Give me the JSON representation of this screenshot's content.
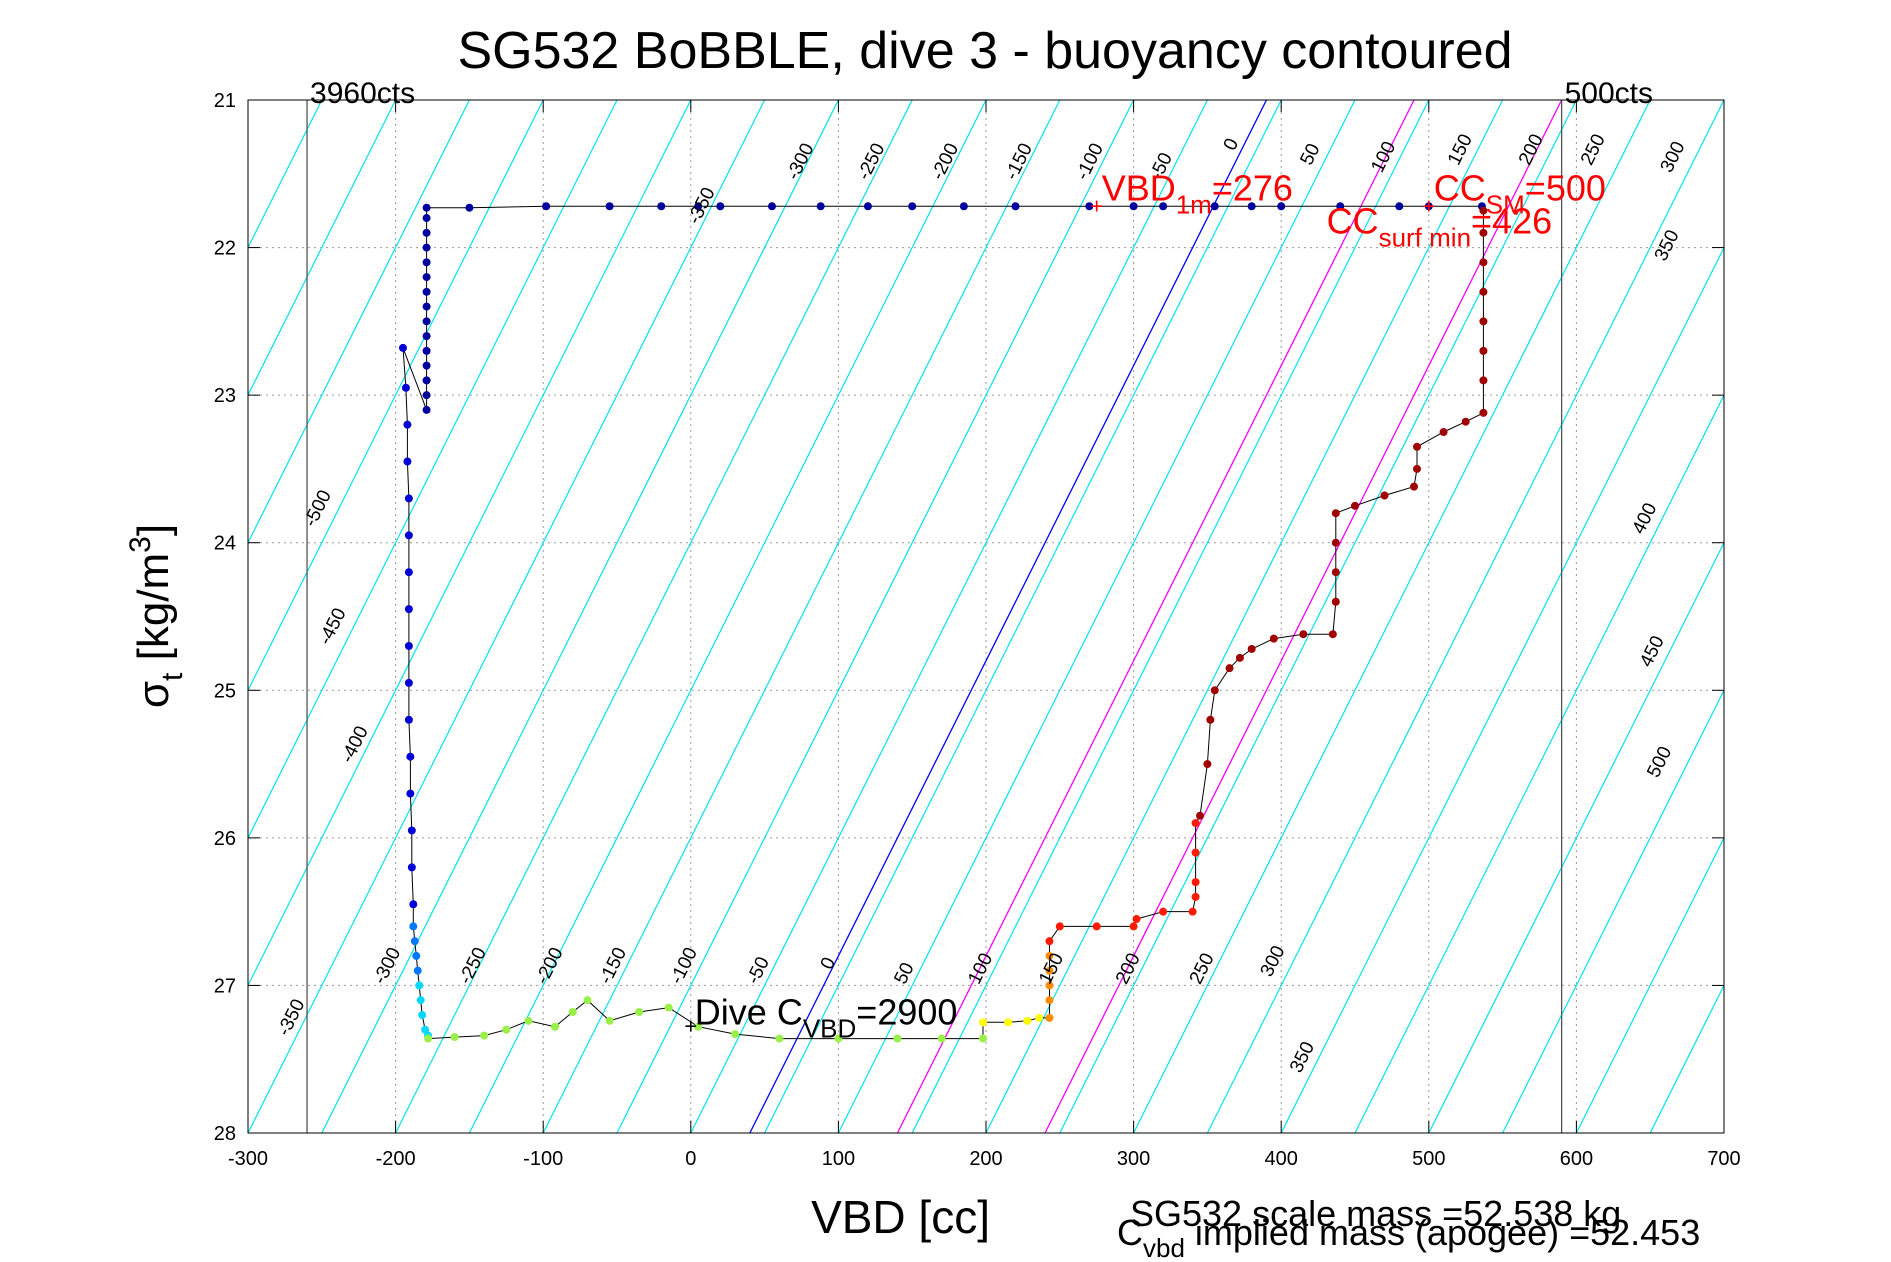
{
  "chart_data": {
    "type": "scatter",
    "title": "SG532 BoBBLE, dive 3 - buoyancy contoured",
    "xlabel": "VBD [cc]",
    "ylabel": {
      "main": "σ",
      "sub": "t",
      "unit": " [kg/m",
      "sup": "3",
      "close": "]"
    },
    "xlim": [
      -300,
      700
    ],
    "ylim": [
      21,
      28
    ],
    "y_reversed": true,
    "grid": true,
    "x_ticks": [
      "-300",
      "-200",
      "-100",
      "0",
      "100",
      "200",
      "300",
      "400",
      "500",
      "600",
      "700"
    ],
    "y_ticks": [
      "21",
      "22",
      "23",
      "24",
      "25",
      "26",
      "27",
      "28"
    ],
    "vertical_limits": [
      {
        "x": -260,
        "label": "3960cts"
      },
      {
        "x": 590,
        "label": "500cts"
      }
    ],
    "reference_lines": [
      {
        "color": "#0000ff",
        "points": [
          [
            40,
            28
          ],
          [
            390,
            21
          ]
        ]
      },
      {
        "color": "#ff00ff",
        "points": [
          [
            140,
            28
          ],
          [
            490,
            21
          ]
        ]
      },
      {
        "color": "#ff00ff",
        "points": [
          [
            240,
            28
          ],
          [
            590,
            21
          ]
        ]
      }
    ],
    "contours": {
      "color": "#00e5ee",
      "slope_cc_per_sigma": -50,
      "anchor_sigma": 28,
      "anchors_cc": [
        -650,
        -600,
        -550,
        -500,
        -450,
        -400,
        -350,
        -300,
        -250,
        -200,
        -150,
        -100,
        -50,
        0,
        50,
        100,
        150,
        200,
        250,
        300,
        350,
        400,
        450,
        500,
        550,
        600,
        650,
        700,
        750,
        800,
        850,
        900,
        950,
        1000,
        1050
      ]
    },
    "contour_labels": [
      {
        "text": "-350",
        "x": -273,
        "y": 27.35
      },
      {
        "text": "-300",
        "x": -208,
        "y": 27.0
      },
      {
        "text": "-250",
        "x": -150,
        "y": 27.0
      },
      {
        "text": "-200",
        "x": -98,
        "y": 27.0
      },
      {
        "text": "-150",
        "x": -55,
        "y": 27.0
      },
      {
        "text": "-100",
        "x": -7,
        "y": 27.0
      },
      {
        "text": "-50",
        "x": 45,
        "y": 27.0
      },
      {
        "text": "0",
        "x": 95,
        "y": 26.9
      },
      {
        "text": "50",
        "x": 145,
        "y": 27.0
      },
      {
        "text": "100",
        "x": 195,
        "y": 27.0
      },
      {
        "text": "150",
        "x": 243,
        "y": 27.0
      },
      {
        "text": "200",
        "x": 295,
        "y": 27.0
      },
      {
        "text": "250",
        "x": 345,
        "y": 27.0
      },
      {
        "text": "300",
        "x": 393,
        "y": 26.95
      },
      {
        "text": "350",
        "x": 413,
        "y": 27.6
      },
      {
        "text": "-500",
        "x": -255,
        "y": 23.9
      },
      {
        "text": "-450",
        "x": -245,
        "y": 24.7
      },
      {
        "text": "-400",
        "x": -230,
        "y": 25.5
      },
      {
        "text": "-350",
        "x": 5,
        "y": 21.85
      },
      {
        "text": "-300",
        "x": 72,
        "y": 21.55
      },
      {
        "text": "-250",
        "x": 120,
        "y": 21.55
      },
      {
        "text": "-200",
        "x": 170,
        "y": 21.55
      },
      {
        "text": "-150",
        "x": 220,
        "y": 21.55
      },
      {
        "text": "-100",
        "x": 268,
        "y": 21.55
      },
      {
        "text": "-50",
        "x": 318,
        "y": 21.55
      },
      {
        "text": "0",
        "x": 368,
        "y": 21.35
      },
      {
        "text": "50",
        "x": 420,
        "y": 21.45
      },
      {
        "text": "100",
        "x": 468,
        "y": 21.5
      },
      {
        "text": "150",
        "x": 520,
        "y": 21.45
      },
      {
        "text": "200",
        "x": 568,
        "y": 21.45
      },
      {
        "text": "250",
        "x": 610,
        "y": 21.45
      },
      {
        "text": "300",
        "x": 664,
        "y": 21.5
      },
      {
        "text": "350",
        "x": 660,
        "y": 22.1
      },
      {
        "text": "400",
        "x": 645,
        "y": 23.95
      },
      {
        "text": "450",
        "x": 650,
        "y": 24.85
      },
      {
        "text": "500",
        "x": 655,
        "y": 25.6
      }
    ],
    "series": [
      {
        "color": "#00009e",
        "points": [
          [
            536,
            21.72
          ],
          [
            500,
            21.72
          ],
          [
            480,
            21.72
          ],
          [
            440,
            21.72
          ],
          [
            400,
            21.72
          ],
          [
            380,
            21.72
          ],
          [
            355,
            21.72
          ],
          [
            320,
            21.72
          ],
          [
            300,
            21.72
          ],
          [
            270,
            21.72
          ],
          [
            220,
            21.72
          ],
          [
            185,
            21.72
          ],
          [
            150,
            21.72
          ],
          [
            120,
            21.72
          ],
          [
            88,
            21.72
          ],
          [
            55,
            21.72
          ],
          [
            20,
            21.72
          ],
          [
            5,
            21.72
          ],
          [
            -20,
            21.72
          ],
          [
            -55,
            21.72
          ],
          [
            -98,
            21.72
          ],
          [
            -150,
            21.73
          ],
          [
            -179,
            21.73
          ],
          [
            -179,
            21.8
          ],
          [
            -179,
            21.9
          ],
          [
            -179,
            22.0
          ],
          [
            -179,
            22.1
          ],
          [
            -179,
            22.2
          ],
          [
            -179,
            22.3
          ],
          [
            -179,
            22.4
          ],
          [
            -179,
            22.5
          ],
          [
            -179,
            22.6
          ],
          [
            -179,
            22.7
          ],
          [
            -179,
            22.8
          ],
          [
            -179,
            22.9
          ],
          [
            -179,
            23.0
          ],
          [
            -179,
            23.1
          ]
        ]
      },
      {
        "color": "#0000d6",
        "points": [
          [
            -195,
            22.68
          ],
          [
            -193,
            22.95
          ],
          [
            -192,
            23.2
          ],
          [
            -192,
            23.45
          ],
          [
            -191,
            23.7
          ],
          [
            -191,
            23.95
          ],
          [
            -191,
            24.2
          ],
          [
            -191,
            24.45
          ],
          [
            -191,
            24.7
          ],
          [
            -191,
            24.95
          ],
          [
            -191,
            25.2
          ],
          [
            -190,
            25.45
          ],
          [
            -190,
            25.7
          ],
          [
            -189,
            25.95
          ],
          [
            -189,
            26.2
          ],
          [
            -188,
            26.45
          ]
        ]
      },
      {
        "color": "#0078ff",
        "points": [
          [
            -188,
            26.6
          ],
          [
            -187,
            26.7
          ],
          [
            -186,
            26.8
          ],
          [
            -185,
            26.9
          ]
        ]
      },
      {
        "color": "#00d8ff",
        "points": [
          [
            -184,
            27.0
          ],
          [
            -183,
            27.1
          ],
          [
            -182,
            27.2
          ],
          [
            -180,
            27.3
          ],
          [
            -178,
            27.34
          ]
        ]
      },
      {
        "color": "#98f048",
        "points": [
          [
            -178,
            27.36
          ],
          [
            -160,
            27.35
          ],
          [
            -140,
            27.34
          ],
          [
            -125,
            27.3
          ],
          [
            -110,
            27.24
          ],
          [
            -92,
            27.28
          ],
          [
            -80,
            27.18
          ],
          [
            -70,
            27.1
          ],
          [
            -55,
            27.24
          ],
          [
            -35,
            27.18
          ],
          [
            -15,
            27.15
          ],
          [
            5,
            27.28
          ],
          [
            30,
            27.33
          ],
          [
            60,
            27.36
          ],
          [
            100,
            27.36
          ],
          [
            140,
            27.36
          ],
          [
            170,
            27.36
          ],
          [
            198,
            27.36
          ]
        ]
      },
      {
        "color": "#ffff00",
        "points": [
          [
            198,
            27.25
          ],
          [
            215,
            27.25
          ],
          [
            228,
            27.24
          ],
          [
            236,
            27.22
          ]
        ]
      },
      {
        "color": "#ff8c00",
        "points": [
          [
            243,
            27.22
          ],
          [
            243,
            27.1
          ],
          [
            243,
            27.0
          ],
          [
            243,
            26.9
          ],
          [
            243,
            26.8
          ]
        ]
      },
      {
        "color": "#ff1a00",
        "points": [
          [
            243,
            26.7
          ],
          [
            250,
            26.6
          ],
          [
            275,
            26.6
          ],
          [
            300,
            26.6
          ],
          [
            302,
            26.55
          ],
          [
            320,
            26.5
          ],
          [
            340,
            26.5
          ],
          [
            342,
            26.4
          ],
          [
            342,
            26.3
          ],
          [
            342,
            26.1
          ],
          [
            342,
            25.9
          ]
        ]
      },
      {
        "color": "#a00000",
        "points": [
          [
            345,
            25.85
          ],
          [
            350,
            25.5
          ],
          [
            352,
            25.2
          ],
          [
            355,
            25.0
          ],
          [
            365,
            24.85
          ],
          [
            372,
            24.78
          ],
          [
            380,
            24.72
          ],
          [
            395,
            24.65
          ],
          [
            415,
            24.62
          ],
          [
            435,
            24.62
          ],
          [
            437,
            24.4
          ],
          [
            437,
            24.2
          ],
          [
            437,
            24.0
          ],
          [
            437,
            23.8
          ],
          [
            450,
            23.75
          ],
          [
            470,
            23.68
          ],
          [
            490,
            23.62
          ],
          [
            492,
            23.5
          ],
          [
            492,
            23.35
          ],
          [
            510,
            23.25
          ],
          [
            525,
            23.18
          ],
          [
            537,
            23.12
          ],
          [
            537,
            22.9
          ],
          [
            537,
            22.7
          ],
          [
            537,
            22.5
          ],
          [
            537,
            22.3
          ],
          [
            537,
            22.1
          ],
          [
            537,
            21.9
          ],
          [
            537,
            21.75
          ]
        ]
      }
    ],
    "annotations": [
      {
        "color": "#ff0000",
        "x": 275,
        "y": 21.72,
        "main": "VBD",
        "sub": "1m",
        "rest": "=276",
        "marker": "+"
      },
      {
        "color": "#ff0000",
        "x": 500,
        "y": 21.72,
        "main": "CC",
        "sub": "SM",
        "rest": "=500",
        "marker": "+"
      },
      {
        "color": "#ff0000",
        "x": 426,
        "y": 21.72,
        "main": "CC",
        "sub": "surf min",
        "rest": "=426",
        "marker": ""
      },
      {
        "color": "#000000",
        "x": 0,
        "y": 27.28,
        "main": "Dive C",
        "sub": "VBD",
        "rest": "=2900",
        "marker": "+"
      }
    ],
    "footer": {
      "line1": "SG532 scale mass =52.538 kg",
      "line2_main": "C",
      "line2_sub": "vbd",
      "line2_rest": " implied mass (apogee) =52.453"
    }
  }
}
